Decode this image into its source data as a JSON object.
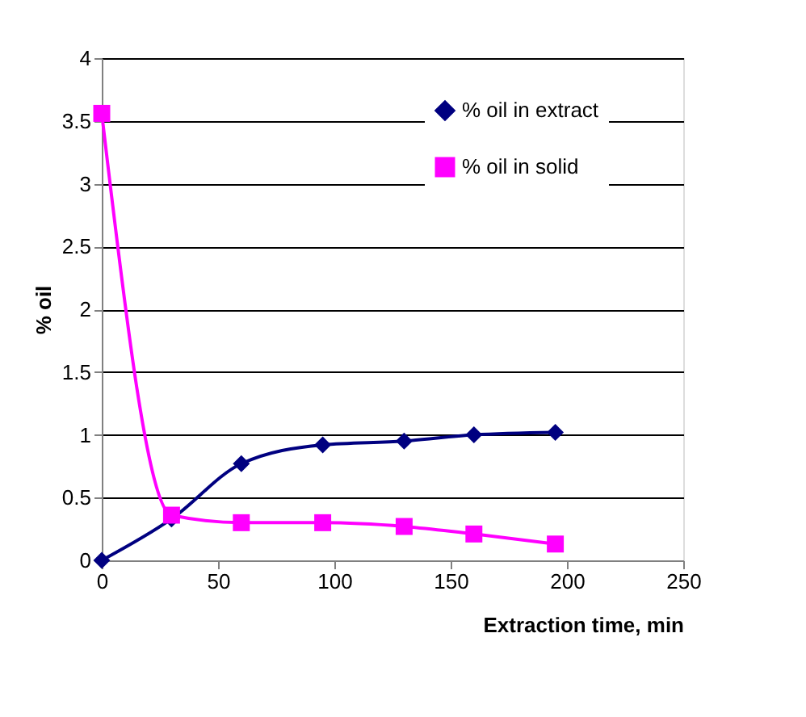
{
  "chart_data": {
    "type": "line",
    "xlabel": "Extraction time, min",
    "ylabel": "% oil",
    "x": [
      0,
      30,
      60,
      95,
      130,
      160,
      195
    ],
    "series": [
      {
        "name": "% oil in extract",
        "color": "#000080",
        "marker": "diamond",
        "values": [
          0,
          0.33,
          0.77,
          0.92,
          0.95,
          1.0,
          1.02
        ]
      },
      {
        "name": "% oil in solid",
        "color": "#ff00ff",
        "marker": "square",
        "values": [
          3.56,
          0.36,
          0.3,
          0.3,
          0.27,
          0.21,
          0.13
        ]
      }
    ],
    "xlim": [
      0,
      250
    ],
    "xticks": [
      0,
      50,
      100,
      150,
      200,
      250
    ],
    "ylim": [
      0,
      4
    ],
    "yticks": [
      0,
      0.5,
      1,
      1.5,
      2,
      2.5,
      3,
      3.5,
      4
    ],
    "grid": "y",
    "legend": "top right"
  }
}
